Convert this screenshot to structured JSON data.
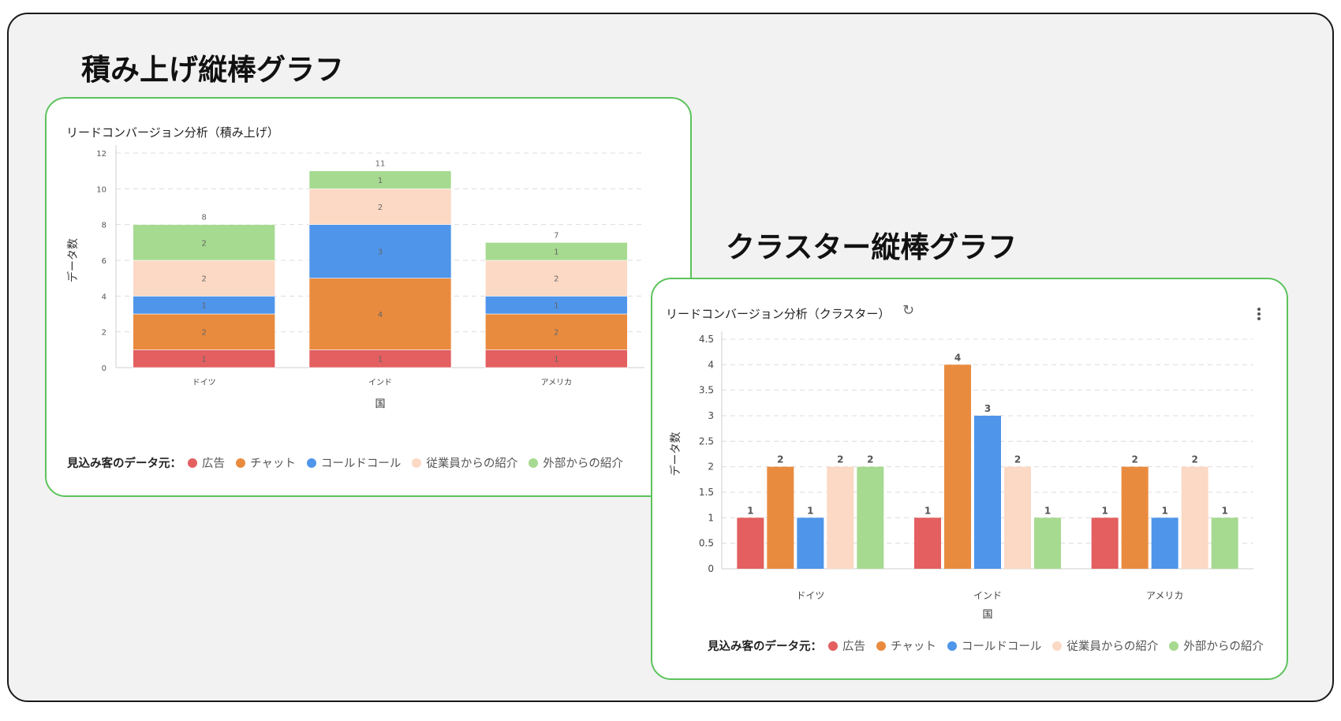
{
  "stacked_section_title": "積み上げ縦棒グラフ",
  "cluster_section_title": "クラスター縦棒グラフ",
  "colors": {
    "広告": "#e35f60",
    "チャット": "#e98b3f",
    "コールドコール": "#4f95ea",
    "従業員からの紹介": "#fcd9c4",
    "外部からの紹介": "#a6da90"
  },
  "chart_data": [
    {
      "type": "bar",
      "stacked": true,
      "title": "リードコンバージョン分析（積み上げ）",
      "xlabel": "国",
      "ylabel": "データ数",
      "ylim": [
        0,
        12
      ],
      "yticks": [
        0,
        2,
        4,
        6,
        8,
        10,
        12
      ],
      "grid": true,
      "legend_position": "bottom",
      "legend_title": "見込み客のデータ元：",
      "categories": [
        "ドイツ",
        "インド",
        "アメリカ"
      ],
      "totals": [
        8,
        11,
        7
      ],
      "series": [
        {
          "name": "広告",
          "values": [
            1,
            1,
            1
          ]
        },
        {
          "name": "チャット",
          "values": [
            2,
            4,
            2
          ]
        },
        {
          "name": "コールドコール",
          "values": [
            1,
            3,
            1
          ]
        },
        {
          "name": "従業員からの紹介",
          "values": [
            2,
            2,
            2
          ]
        },
        {
          "name": "外部からの紹介",
          "values": [
            2,
            1,
            1
          ]
        }
      ]
    },
    {
      "type": "bar",
      "stacked": false,
      "title": "リードコンバージョン分析（クラスター）",
      "xlabel": "国",
      "ylabel": "データ数",
      "ylim": [
        0,
        4.5
      ],
      "yticks": [
        0,
        0.5,
        1,
        1.5,
        2,
        2.5,
        3,
        3.5,
        4,
        4.5
      ],
      "grid": true,
      "legend_position": "bottom",
      "legend_title": "見込み客のデータ元：",
      "categories": [
        "ドイツ",
        "インド",
        "アメリカ"
      ],
      "series": [
        {
          "name": "広告",
          "values": [
            1,
            1,
            1
          ]
        },
        {
          "name": "チャット",
          "values": [
            2,
            4,
            2
          ]
        },
        {
          "name": "コールドコール",
          "values": [
            1,
            3,
            1
          ]
        },
        {
          "name": "従業員からの紹介",
          "values": [
            2,
            2,
            2
          ]
        },
        {
          "name": "外部からの紹介",
          "values": [
            2,
            1,
            1
          ]
        }
      ]
    }
  ]
}
